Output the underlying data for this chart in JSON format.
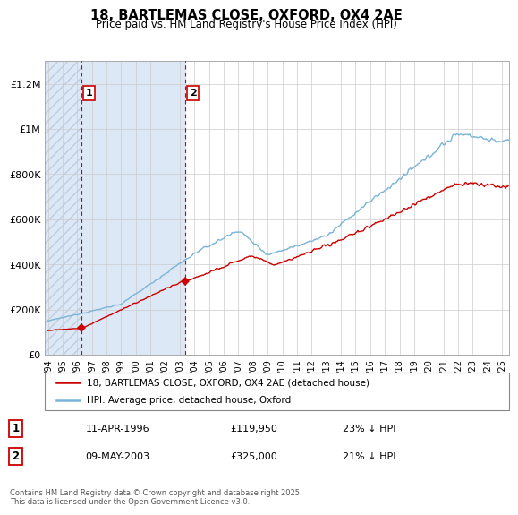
{
  "title": "18, BARTLEMAS CLOSE, OXFORD, OX4 2AE",
  "subtitle": "Price paid vs. HM Land Registry's House Price Index (HPI)",
  "legend_line1": "18, BARTLEMAS CLOSE, OXFORD, OX4 2AE (detached house)",
  "legend_line2": "HPI: Average price, detached house, Oxford",
  "footnote": "Contains HM Land Registry data © Crown copyright and database right 2025.\nThis data is licensed under the Open Government Licence v3.0.",
  "sale1_label": "1",
  "sale1_date": "11-APR-1996",
  "sale1_price": "£119,950",
  "sale1_hpi": "23% ↓ HPI",
  "sale1_year": 1996.28,
  "sale1_value": 119950,
  "sale2_label": "2",
  "sale2_date": "09-MAY-2003",
  "sale2_price": "£325,000",
  "sale2_hpi": "21% ↓ HPI",
  "sale2_year": 2003.36,
  "sale2_value": 325000,
  "hpi_color": "#7ab4d8",
  "sale_color": "#cc0000",
  "marker_border_color": "#cc0000",
  "vline_color": "#cc0000",
  "grid_color": "#cccccc",
  "plot_bg": "#ffffff",
  "shade_color": "#dce8f5",
  "hatch_color": "#c0cce0",
  "ylim_max": 1300000,
  "ylim_min": 0,
  "xmin": 1993.8,
  "xmax": 2025.5,
  "yticks": [
    0,
    200000,
    400000,
    600000,
    800000,
    1000000,
    1200000
  ],
  "ylabels": [
    "£0",
    "£200K",
    "£400K",
    "£600K",
    "£800K",
    "£1M",
    "£1.2M"
  ]
}
